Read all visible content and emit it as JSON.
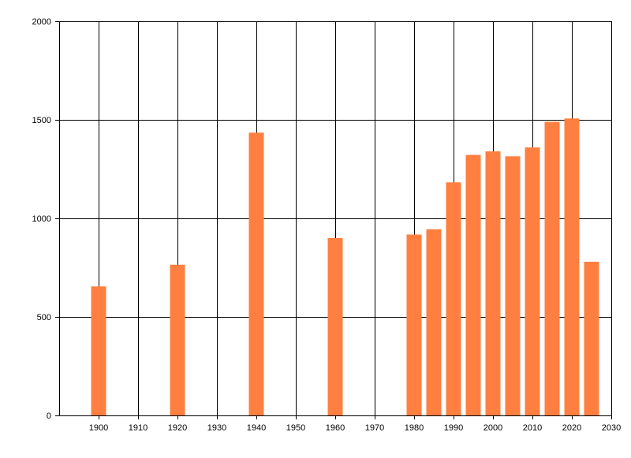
{
  "chart_data": {
    "type": "bar",
    "title": "",
    "xlabel": "",
    "ylabel": "",
    "x": [
      1900,
      1920,
      1940,
      1960,
      1980,
      1985,
      1990,
      1995,
      2000,
      2005,
      2010,
      2015,
      2020,
      2025
    ],
    "values": [
      655,
      765,
      1435,
      900,
      918,
      945,
      1183,
      1322,
      1340,
      1315,
      1360,
      1490,
      1507,
      780
    ],
    "xlim": [
      1890,
      2030
    ],
    "ylim": [
      0,
      2000
    ],
    "x_ticks": [
      1900,
      1910,
      1920,
      1930,
      1940,
      1950,
      1960,
      1970,
      1980,
      1990,
      2000,
      2010,
      2020,
      2030
    ],
    "y_ticks": [
      0,
      500,
      1000,
      1500,
      2000
    ],
    "grid": true,
    "legend": "none",
    "bar_color": "#ff7f40",
    "grid_color": "#000000"
  }
}
